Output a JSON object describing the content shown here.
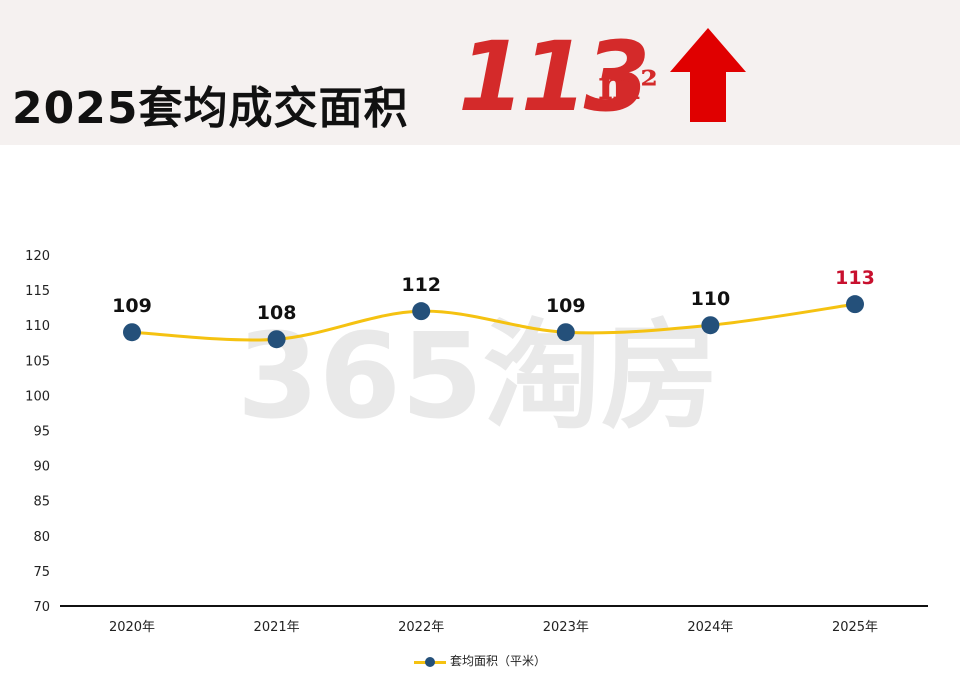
{
  "header": {
    "title": "2025套均成交面积",
    "value": "113",
    "unit": "m²",
    "arrow_icon": "up-arrow-icon"
  },
  "watermark": {
    "text": "365淘房"
  },
  "colors": {
    "line": "#f5c211",
    "marker": "#24507a",
    "highlight": "#c8102e",
    "header_value": "#d42a2a",
    "header_bg": "#f5f1f0"
  },
  "chart_data": {
    "type": "line",
    "categories": [
      "2020年",
      "2021年",
      "2022年",
      "2023年",
      "2024年",
      "2025年"
    ],
    "series": [
      {
        "name": "套均面积（平米）",
        "values": [
          109,
          108,
          112,
          109,
          110,
          113
        ]
      }
    ],
    "highlight_index": 5,
    "ylim": [
      70,
      120
    ],
    "yticks": [
      70,
      75,
      80,
      85,
      90,
      95,
      100,
      105,
      110,
      115,
      120
    ],
    "xlabel": "",
    "ylabel": "",
    "grid": false,
    "legend": "bottom-center"
  }
}
